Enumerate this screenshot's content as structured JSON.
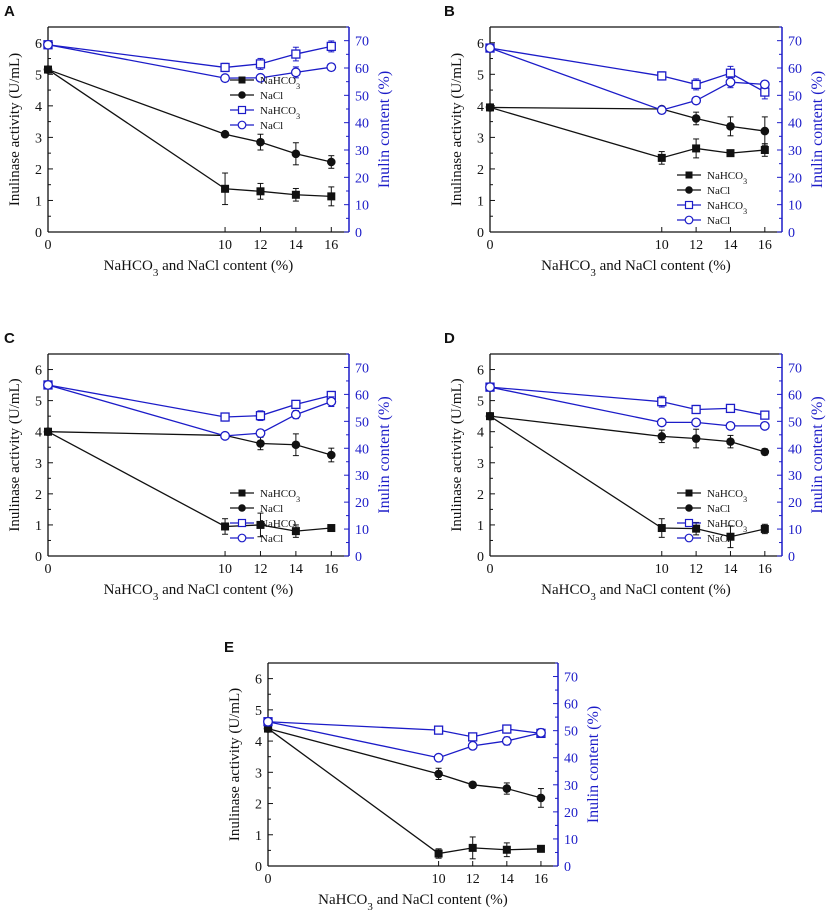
{
  "colors": {
    "black_axis": "#111111",
    "blue_axis": "#1c1cc8"
  },
  "chart_data": [
    {
      "panel": "A",
      "type": "line",
      "xlabel": "NaHCO3 and NaCl content (%)",
      "ylabel_left": "Inulinase activity (U/mL)",
      "ylabel_right": "Inulin content (%)",
      "x": [
        0,
        10,
        12,
        14,
        16
      ],
      "x_ticks": [
        "0",
        "10",
        "12",
        "14",
        "16"
      ],
      "y_left_lim": [
        0,
        6.5
      ],
      "y_left_ticks": [
        "0",
        "1",
        "2",
        "3",
        "4",
        "5",
        "6"
      ],
      "y_right_lim": [
        0,
        75
      ],
      "y_right_ticks": [
        "0",
        "10",
        "20",
        "30",
        "40",
        "50",
        "60",
        "70"
      ],
      "legend": [
        "NaHCO3",
        "NaCl",
        "NaHCO3",
        "NaCl"
      ],
      "series": [
        {
          "name": "NaHCO3",
          "axis": "left",
          "marker": "square-filled",
          "values": [
            5.15,
            1.37,
            1.29,
            1.18,
            1.13
          ],
          "errors": [
            0,
            0.5,
            0.25,
            0.2,
            0.3
          ]
        },
        {
          "name": "NaCl",
          "axis": "left",
          "marker": "circle-filled",
          "values": [
            5.15,
            3.1,
            2.85,
            2.48,
            2.22
          ],
          "errors": [
            0,
            0,
            0.25,
            0.35,
            0.2
          ]
        },
        {
          "name": "NaHCO3",
          "axis": "right",
          "marker": "square-open",
          "values": [
            68.5,
            60.2,
            61.5,
            65.1,
            67.9
          ],
          "errors": [
            0,
            1.5,
            2,
            2.5,
            2
          ]
        },
        {
          "name": "NaCl",
          "axis": "right",
          "marker": "circle-open",
          "values": [
            68.5,
            56.3,
            56.4,
            58.4,
            60.3
          ],
          "errors": [
            0,
            1.2,
            1.2,
            2,
            1.2
          ]
        }
      ]
    },
    {
      "panel": "B",
      "type": "line",
      "xlabel": "NaHCO3 and NaCl content (%)",
      "ylabel_left": "Inulinase activity (U/mL)",
      "ylabel_right": "Inulin content (%)",
      "x": [
        0,
        10,
        12,
        14,
        16
      ],
      "x_ticks": [
        "0",
        "10",
        "12",
        "14",
        "16"
      ],
      "y_left_lim": [
        0,
        6.5
      ],
      "y_left_ticks": [
        "0",
        "1",
        "2",
        "3",
        "4",
        "5",
        "6"
      ],
      "y_right_lim": [
        0,
        75
      ],
      "y_right_ticks": [
        "0",
        "10",
        "20",
        "30",
        "40",
        "50",
        "60",
        "70"
      ],
      "legend": [
        "NaHCO3",
        "NaCl",
        "NaHCO3",
        "NaCl"
      ],
      "series": [
        {
          "name": "NaHCO3",
          "axis": "left",
          "marker": "square-filled",
          "values": [
            3.95,
            2.35,
            2.65,
            2.5,
            2.6
          ],
          "errors": [
            0,
            0.2,
            0.3,
            0,
            0.2
          ]
        },
        {
          "name": "NaCl",
          "axis": "left",
          "marker": "circle-filled",
          "values": [
            3.95,
            3.9,
            3.6,
            3.35,
            3.2
          ],
          "errors": [
            0,
            0,
            0.2,
            0.3,
            0.45
          ]
        },
        {
          "name": "NaHCO3",
          "axis": "right",
          "marker": "square-open",
          "values": [
            67.3,
            57.1,
            54.0,
            58.1,
            51.2
          ],
          "errors": [
            0,
            1.5,
            2,
            2.5,
            2.5
          ]
        },
        {
          "name": "NaCl",
          "axis": "right",
          "marker": "circle-open",
          "values": [
            67.3,
            44.6,
            48.1,
            54.8,
            54.0
          ],
          "errors": [
            0,
            1,
            1.2,
            2,
            1.2
          ]
        }
      ]
    },
    {
      "panel": "C",
      "type": "line",
      "xlabel": "NaHCO3 and NaCl content (%)",
      "ylabel_left": "Inulinase activity (U/mL)",
      "ylabel_right": "Inulin content (%)",
      "x": [
        0,
        10,
        12,
        14,
        16
      ],
      "x_ticks": [
        "0",
        "10",
        "12",
        "14",
        "16"
      ],
      "y_left_lim": [
        0,
        6.5
      ],
      "y_left_ticks": [
        "0",
        "1",
        "2",
        "3",
        "4",
        "5",
        "6"
      ],
      "y_right_lim": [
        0,
        75
      ],
      "y_right_ticks": [
        "0",
        "10",
        "20",
        "30",
        "40",
        "50",
        "60",
        "70"
      ],
      "legend": [
        "NaHCO3",
        "NaCl",
        "NaHCO3",
        "NaCl"
      ],
      "series": [
        {
          "name": "NaHCO3",
          "axis": "left",
          "marker": "square-filled",
          "values": [
            4.0,
            0.95,
            1.0,
            0.8,
            0.9
          ],
          "errors": [
            0,
            0.25,
            0.38,
            0.2,
            0
          ]
        },
        {
          "name": "NaCl",
          "axis": "left",
          "marker": "circle-filled",
          "values": [
            4.0,
            3.88,
            3.62,
            3.58,
            3.25
          ],
          "errors": [
            0,
            0,
            0.2,
            0.35,
            0.22
          ]
        },
        {
          "name": "NaHCO3",
          "axis": "right",
          "marker": "square-open",
          "values": [
            63.5,
            51.6,
            52.1,
            56.3,
            59.6
          ],
          "errors": [
            0,
            1.5,
            1.8,
            1.2,
            1.5
          ]
        },
        {
          "name": "NaCl",
          "axis": "right",
          "marker": "circle-open",
          "values": [
            63.5,
            44.6,
            45.6,
            52.5,
            57.3
          ],
          "errors": [
            0,
            1,
            1,
            1.5,
            1.8
          ]
        }
      ]
    },
    {
      "panel": "D",
      "type": "line",
      "xlabel": "NaHCO3 and NaCl content (%)",
      "ylabel_left": "Inulinase activity (U/mL)",
      "ylabel_right": "Inulin content (%)",
      "x": [
        0,
        10,
        12,
        14,
        16
      ],
      "x_ticks": [
        "0",
        "10",
        "12",
        "14",
        "16"
      ],
      "y_left_lim": [
        0,
        6.5
      ],
      "y_left_ticks": [
        "0",
        "1",
        "2",
        "3",
        "4",
        "5",
        "6"
      ],
      "y_right_lim": [
        0,
        75
      ],
      "y_right_ticks": [
        "0",
        "10",
        "20",
        "30",
        "40",
        "50",
        "60",
        "70"
      ],
      "legend": [
        "NaHCO3",
        "NaCl",
        "NaHCO3",
        "NaCl"
      ],
      "series": [
        {
          "name": "NaHCO3",
          "axis": "left",
          "marker": "square-filled",
          "values": [
            4.5,
            0.9,
            0.88,
            0.62,
            0.87
          ],
          "errors": [
            0,
            0.3,
            0.2,
            0.35,
            0.15
          ]
        },
        {
          "name": "NaCl",
          "axis": "left",
          "marker": "circle-filled",
          "values": [
            4.5,
            3.85,
            3.78,
            3.68,
            3.35
          ],
          "errors": [
            0,
            0.2,
            0.3,
            0.2,
            0.1
          ]
        },
        {
          "name": "NaHCO3",
          "axis": "right",
          "marker": "square-open",
          "values": [
            62.7,
            57.3,
            54.4,
            54.8,
            52.3
          ],
          "errors": [
            0,
            2,
            1.5,
            1.2,
            0.8
          ]
        },
        {
          "name": "NaCl",
          "axis": "right",
          "marker": "circle-open",
          "values": [
            62.7,
            49.6,
            49.6,
            48.3,
            48.3
          ],
          "errors": [
            0,
            1,
            1,
            0.8,
            1
          ]
        }
      ]
    },
    {
      "panel": "E",
      "type": "line",
      "xlabel": "NaHCO3 and NaCl content (%)",
      "ylabel_left": "Inulinase activity (U/mL)",
      "ylabel_right": "Inulin content (%)",
      "x": [
        0,
        10,
        12,
        14,
        16
      ],
      "x_ticks": [
        "0",
        "10",
        "12",
        "14",
        "16"
      ],
      "y_left_lim": [
        0,
        6.5
      ],
      "y_left_ticks": [
        "0",
        "1",
        "2",
        "3",
        "4",
        "5",
        "6"
      ],
      "y_right_lim": [
        0,
        75
      ],
      "y_right_ticks": [
        "0",
        "10",
        "20",
        "30",
        "40",
        "50",
        "60",
        "70"
      ],
      "legend": [],
      "series": [
        {
          "name": "NaHCO3",
          "axis": "left",
          "marker": "square-filled",
          "values": [
            4.4,
            0.4,
            0.58,
            0.52,
            0.55
          ],
          "errors": [
            0,
            0.15,
            0.35,
            0.22,
            0
          ]
        },
        {
          "name": "NaCl",
          "axis": "left",
          "marker": "circle-filled",
          "values": [
            4.4,
            2.95,
            2.6,
            2.48,
            2.18
          ],
          "errors": [
            0,
            0.18,
            0,
            0.18,
            0.3
          ]
        },
        {
          "name": "NaHCO3",
          "axis": "right",
          "marker": "square-open",
          "values": [
            53.3,
            50.2,
            47.7,
            50.6,
            49.0
          ],
          "errors": [
            0,
            1,
            1.2,
            1.5,
            1.2
          ]
        },
        {
          "name": "NaCl",
          "axis": "right",
          "marker": "circle-open",
          "values": [
            53.3,
            40.0,
            44.4,
            46.2,
            49.2
          ],
          "errors": [
            0,
            1,
            1.2,
            1.5,
            1.5
          ]
        }
      ]
    }
  ]
}
